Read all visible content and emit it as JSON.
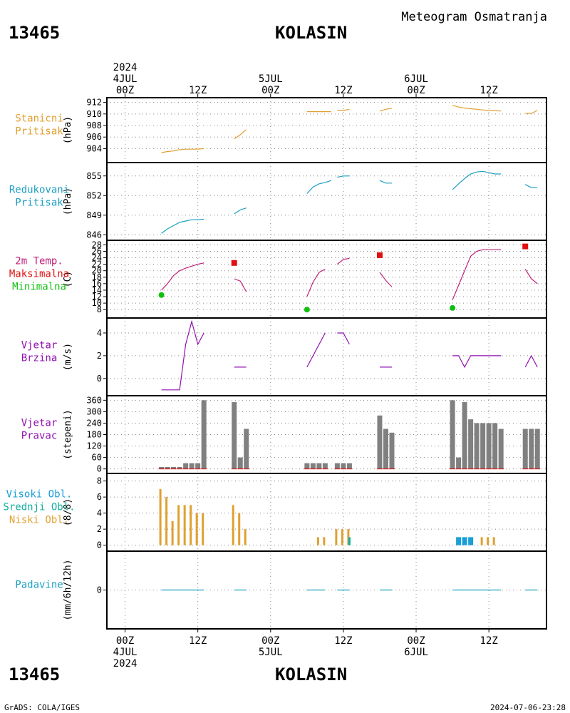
{
  "header": {
    "subtitle": "Meteogram Osmatranja",
    "station_id": "13465",
    "station_name": "KOLASIN"
  },
  "footer": {
    "station_id": "13465",
    "station_name": "KOLASIN",
    "credit": "GrADS: COLA/IGES",
    "timestamp": "2024-07-06-23:28"
  },
  "time_axis": {
    "top_ticks": [
      {
        "hour": 0,
        "lines": [
          "2024",
          "4JUL",
          "00Z"
        ]
      },
      {
        "hour": 12,
        "lines": [
          "12Z"
        ]
      },
      {
        "hour": 24,
        "lines": [
          "5JUL",
          "00Z"
        ]
      },
      {
        "hour": 36,
        "lines": [
          "12Z"
        ]
      },
      {
        "hour": 48,
        "lines": [
          "6JUL",
          "00Z"
        ]
      },
      {
        "hour": 60,
        "lines": [
          "12Z"
        ]
      }
    ],
    "bottom_ticks": [
      {
        "hour": 0,
        "lines": [
          "00Z",
          "4JUL",
          "2024"
        ]
      },
      {
        "hour": 12,
        "lines": [
          "12Z"
        ]
      },
      {
        "hour": 24,
        "lines": [
          "00Z",
          "5JUL"
        ]
      },
      {
        "hour": 36,
        "lines": [
          "12Z"
        ]
      },
      {
        "hour": 48,
        "lines": [
          "00Z",
          "6JUL"
        ]
      },
      {
        "hour": 60,
        "lines": [
          "12Z"
        ]
      }
    ],
    "x_range_hours": [
      -3,
      69.5
    ]
  },
  "colors": {
    "pressure": "#e0a030",
    "reduced": "#1a9fc0",
    "temp": "#c0207a",
    "tmax": "#e01010",
    "tmin": "#10c010",
    "wind": "#9010b0",
    "bar_gray": "#808080",
    "cloud_low": "#e0a030",
    "cloud_mid": "#10b0a0",
    "cloud_high": "#1a9fd8",
    "precip": "#1a9fc0"
  },
  "chart_data": [
    {
      "type": "line",
      "panel": "station_pressure",
      "label_lines": [
        "Stanicni",
        "Pritisak"
      ],
      "label_colors": [
        "pressure",
        "pressure"
      ],
      "ylabel": "(hPa)",
      "ylim": [
        902.2,
        912.2
      ],
      "yticks": [
        904,
        906,
        908,
        910,
        912
      ],
      "dashed_top": true,
      "grid": true,
      "series": [
        {
          "color": "pressure",
          "x": [
            6,
            7,
            8,
            9,
            10,
            11,
            12,
            13
          ],
          "y": [
            903.3,
            903.5,
            903.6,
            903.8,
            903.9,
            903.9,
            903.9,
            904.0
          ]
        },
        {
          "color": "pressure",
          "x": [
            18,
            19,
            20
          ],
          "y": [
            905.7,
            906.4,
            907.3
          ]
        },
        {
          "color": "pressure",
          "x": [
            30,
            31,
            32,
            33,
            34
          ],
          "y": [
            910.4,
            910.4,
            910.4,
            910.4,
            910.4
          ]
        },
        {
          "color": "pressure",
          "x": [
            35,
            36,
            37
          ],
          "y": [
            910.6,
            910.6,
            910.8
          ]
        },
        {
          "color": "pressure",
          "x": [
            42,
            43,
            44
          ],
          "y": [
            910.5,
            910.8,
            911.0
          ]
        },
        {
          "color": "pressure",
          "x": [
            54,
            55,
            56,
            57,
            58,
            59,
            60,
            61,
            62
          ],
          "y": [
            911.5,
            911.2,
            911.0,
            910.9,
            910.8,
            910.7,
            910.6,
            910.6,
            910.5
          ]
        },
        {
          "color": "pressure",
          "x": [
            66,
            67,
            68
          ],
          "y": [
            910.1,
            910.1,
            910.6
          ]
        }
      ]
    },
    {
      "type": "line",
      "panel": "reduced_pressure",
      "label_lines": [
        "Redukovani",
        "Pritisak"
      ],
      "label_colors": [
        "reduced",
        "reduced"
      ],
      "ylabel": "(hPa)",
      "ylim": [
        845.7,
        856.5
      ],
      "yticks": [
        846,
        849,
        852,
        855
      ],
      "grid": true,
      "series": [
        {
          "color": "reduced",
          "x": [
            6,
            7,
            8,
            9,
            10,
            11,
            12,
            13
          ],
          "y": [
            846.2,
            846.9,
            847.4,
            847.9,
            848.1,
            848.3,
            848.3,
            848.4
          ]
        },
        {
          "color": "reduced",
          "x": [
            18,
            19,
            20
          ],
          "y": [
            849.2,
            849.8,
            850.1
          ]
        },
        {
          "color": "reduced",
          "x": [
            30,
            31,
            32,
            33,
            34
          ],
          "y": [
            852.3,
            853.3,
            853.8,
            854.0,
            854.3
          ]
        },
        {
          "color": "reduced",
          "x": [
            35,
            36,
            37
          ],
          "y": [
            854.8,
            855.0,
            855.0
          ]
        },
        {
          "color": "reduced",
          "x": [
            42,
            43,
            44
          ],
          "y": [
            854.3,
            853.9,
            853.9
          ]
        },
        {
          "color": "reduced",
          "x": [
            54,
            55,
            56,
            57,
            58,
            59,
            60,
            61,
            62
          ],
          "y": [
            852.9,
            853.8,
            854.6,
            855.3,
            855.6,
            855.7,
            855.5,
            855.3,
            855.3
          ]
        },
        {
          "color": "reduced",
          "x": [
            66,
            67,
            68
          ],
          "y": [
            853.7,
            853.2,
            853.2
          ]
        }
      ]
    },
    {
      "type": "line",
      "panel": "temperature",
      "label_lines": [
        "2m Temp.",
        "Maksimalna",
        "Minimalna"
      ],
      "label_colors": [
        "temp",
        "tmax",
        "tmin"
      ],
      "ylabel": "(C)",
      "ylim": [
        6.5,
        28.3
      ],
      "yticks": [
        8,
        10,
        12,
        14,
        16,
        18,
        20,
        22,
        24,
        26,
        28
      ],
      "grid": true,
      "series": [
        {
          "color": "temp",
          "x": [
            6,
            7,
            8,
            9,
            10,
            11,
            12,
            13
          ],
          "y": [
            14.0,
            16.0,
            18.5,
            20.0,
            20.8,
            21.4,
            22.0,
            22.4
          ]
        },
        {
          "color": "temp",
          "x": [
            18,
            19,
            20
          ],
          "y": [
            17.5,
            16.8,
            13.5
          ]
        },
        {
          "color": "temp",
          "x": [
            30,
            31,
            32,
            33
          ],
          "y": [
            12.0,
            16.5,
            19.5,
            20.5
          ]
        },
        {
          "color": "temp",
          "x": [
            35,
            36,
            37
          ],
          "y": [
            22.0,
            23.5,
            23.8
          ]
        },
        {
          "color": "temp",
          "x": [
            42,
            43,
            44
          ],
          "y": [
            19.5,
            17.0,
            15.0
          ]
        },
        {
          "color": "temp",
          "x": [
            54,
            55,
            56,
            57,
            58,
            59,
            60,
            61,
            62
          ],
          "y": [
            11.0,
            15.5,
            20.0,
            24.5,
            26.0,
            26.5,
            26.5,
            26.5,
            26.5
          ]
        },
        {
          "color": "temp",
          "x": [
            66,
            67,
            68
          ],
          "y": [
            20.5,
            17.5,
            16.0
          ]
        }
      ],
      "markers": [
        {
          "kind": "square",
          "color": "tmax",
          "x": 18,
          "y": 22.4
        },
        {
          "kind": "square",
          "color": "tmax",
          "x": 42,
          "y": 24.8
        },
        {
          "kind": "square",
          "color": "tmax",
          "x": 66,
          "y": 27.5
        },
        {
          "kind": "circle",
          "color": "tmin",
          "x": 6,
          "y": 12.5
        },
        {
          "kind": "circle",
          "color": "tmin",
          "x": 30,
          "y": 8.0
        },
        {
          "kind": "circle",
          "color": "tmin",
          "x": 54,
          "y": 8.5
        }
      ]
    },
    {
      "type": "line",
      "panel": "wind_speed",
      "label_lines": [
        "Vjetar",
        "Brzina"
      ],
      "label_colors": [
        "wind",
        "wind"
      ],
      "ylabel": "(m/s)",
      "ylim": [
        -1.2,
        5.0
      ],
      "yticks": [
        0,
        2,
        4
      ],
      "grid": true,
      "series": [
        {
          "color": "wind",
          "x": [
            6,
            7,
            8,
            9,
            10,
            11,
            12,
            13
          ],
          "y": [
            -1,
            -1,
            -1,
            -1,
            3,
            5,
            3,
            4
          ]
        },
        {
          "color": "wind",
          "x": [
            18,
            19,
            20
          ],
          "y": [
            1,
            1,
            1
          ]
        },
        {
          "color": "wind",
          "x": [
            30,
            31,
            32,
            33
          ],
          "y": [
            1,
            2,
            3,
            4
          ]
        },
        {
          "color": "wind",
          "x": [
            35,
            36,
            37
          ],
          "y": [
            4,
            4,
            3
          ]
        },
        {
          "color": "wind",
          "x": [
            42,
            43,
            44
          ],
          "y": [
            1,
            1,
            1
          ]
        },
        {
          "color": "wind",
          "x": [
            54,
            55,
            56,
            57,
            58,
            59,
            60,
            61,
            62
          ],
          "y": [
            2,
            2,
            1,
            2,
            2,
            2,
            2,
            2,
            2
          ]
        },
        {
          "color": "wind",
          "x": [
            66,
            67,
            68
          ],
          "y": [
            1,
            2,
            1
          ]
        }
      ]
    },
    {
      "type": "bar",
      "panel": "wind_direction",
      "label_lines": [
        "Vjetar",
        "Pravac"
      ],
      "label_colors": [
        "wind",
        "wind"
      ],
      "ylabel": "(stepeni)",
      "ylim": [
        -5,
        365
      ],
      "yticks": [
        0,
        60,
        120,
        180,
        240,
        300,
        360
      ],
      "grid": true,
      "bar_color": "bar_gray",
      "x": [
        6,
        7,
        8,
        9,
        10,
        11,
        12,
        13,
        18,
        19,
        20,
        30,
        31,
        32,
        33,
        35,
        36,
        37,
        42,
        43,
        44,
        54,
        55,
        56,
        57,
        58,
        59,
        60,
        61,
        62,
        66,
        67,
        68
      ],
      "values": [
        10,
        10,
        10,
        10,
        30,
        30,
        30,
        360,
        350,
        60,
        210,
        30,
        30,
        30,
        30,
        30,
        30,
        30,
        280,
        210,
        190,
        360,
        60,
        350,
        260,
        240,
        240,
        240,
        240,
        210,
        210,
        210,
        210
      ]
    },
    {
      "type": "bar",
      "panel": "clouds",
      "label_lines": [
        "Visoki Obl.",
        "Srednji Obl.",
        "Niski Obl."
      ],
      "label_colors": [
        "cloud_high",
        "cloud_mid",
        "cloud_low"
      ],
      "ylabel": "(8/8)",
      "ylim": [
        -0.3,
        8.5
      ],
      "yticks": [
        0,
        2,
        4,
        6,
        8
      ],
      "grid": true,
      "series": [
        {
          "name": "Niski Obl.",
          "color": "cloud_low",
          "x": [
            6,
            7,
            8,
            9,
            10,
            11,
            12,
            13,
            18,
            19,
            20,
            32,
            33,
            35,
            36,
            37,
            59,
            60,
            61
          ],
          "values": [
            7,
            6,
            3,
            5,
            5,
            5,
            4,
            4,
            5,
            4,
            2,
            1,
            1,
            2,
            2,
            2,
            1,
            1,
            1
          ]
        },
        {
          "name": "Srednji Obl.",
          "color": "cloud_mid",
          "x": [
            37
          ],
          "values": [
            1
          ]
        },
        {
          "name": "Visoki Obl.",
          "color": "cloud_high",
          "x": [
            55,
            56,
            57
          ],
          "values": [
            1,
            1,
            1
          ]
        }
      ]
    },
    {
      "type": "line",
      "panel": "precipitation",
      "label_lines": [
        "Padavine"
      ],
      "label_colors": [
        "precip"
      ],
      "ylabel": "(mm/6h/12h)",
      "ylim": [
        -5,
        5
      ],
      "yticks": [
        0
      ],
      "grid": true,
      "series": [
        {
          "color": "precip",
          "x": [
            6,
            7,
            8,
            9,
            10,
            11,
            12,
            13
          ],
          "y": [
            0,
            0,
            0,
            0,
            0,
            0,
            0,
            0
          ]
        },
        {
          "color": "precip",
          "x": [
            18,
            19,
            20
          ],
          "y": [
            0,
            0,
            0
          ]
        },
        {
          "color": "precip",
          "x": [
            30,
            31,
            32,
            33
          ],
          "y": [
            0,
            0,
            0,
            0
          ]
        },
        {
          "color": "precip",
          "x": [
            35,
            36,
            37
          ],
          "y": [
            0,
            0,
            0
          ]
        },
        {
          "color": "precip",
          "x": [
            42,
            43,
            44
          ],
          "y": [
            0,
            0,
            0
          ]
        },
        {
          "color": "precip",
          "x": [
            54,
            55,
            56,
            57,
            58,
            59,
            60,
            61,
            62
          ],
          "y": [
            0,
            0,
            0,
            0,
            0,
            0,
            0,
            0,
            0
          ]
        },
        {
          "color": "precip",
          "x": [
            66,
            67,
            68
          ],
          "y": [
            0,
            0,
            0
          ]
        }
      ]
    }
  ]
}
